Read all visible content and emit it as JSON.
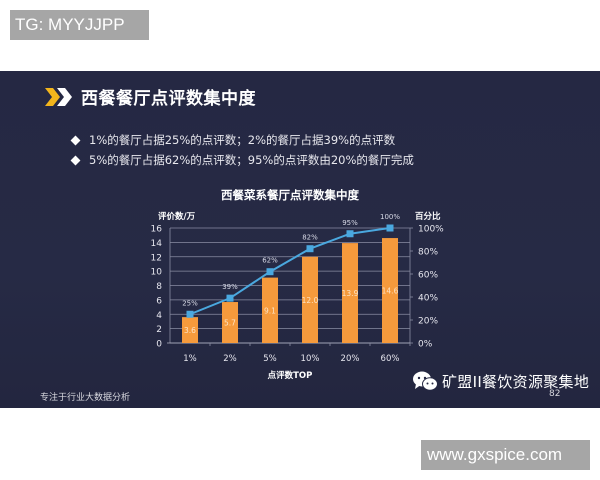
{
  "watermark_top": "TG: MYYJJPP",
  "watermark_bottom": "www.gxspice.com",
  "slide": {
    "title": "西餐餐厅点评数集中度",
    "bullets": [
      "1%的餐厅占据25%的点评数；2%的餐厅占据39%的点评数",
      "5%的餐厅占据62%的点评数；95%的点评数由20%的餐厅完成"
    ],
    "footer_left": "专注于行业大数据分析",
    "page_number": "82",
    "wechat_account": "矿盟II餐饮资源聚集地"
  },
  "colors": {
    "background": "#252843",
    "bar": "#f59a3c",
    "line": "#4aa8df",
    "chevron_yellow": "#f2b51c",
    "gridline": "#8a8da3"
  },
  "chart_data": {
    "type": "bar",
    "title": "西餐菜系餐厅点评数集中度",
    "xlabel": "点评数TOP",
    "ylabel": "评价数/万",
    "y2label": "百分比",
    "categories": [
      "1%",
      "2%",
      "5%",
      "10%",
      "20%",
      "60%"
    ],
    "series": [
      {
        "name": "评价数/万",
        "type": "bar",
        "axis": "left",
        "values": [
          3.6,
          5.7,
          9.1,
          12.0,
          13.9,
          14.6
        ]
      },
      {
        "name": "百分比",
        "type": "line",
        "axis": "right",
        "values": [
          25,
          39,
          62,
          82,
          95,
          100
        ],
        "labels": [
          "25%",
          "39%",
          "62%",
          "82%",
          "95%",
          "100%"
        ]
      }
    ],
    "ylim": [
      0,
      16
    ],
    "yticks": [
      "0",
      "2",
      "4",
      "6",
      "8",
      "10",
      "12",
      "14",
      "16"
    ],
    "y2lim": [
      0,
      100
    ],
    "y2ticks": [
      "0%",
      "20%",
      "40%",
      "60%",
      "80%",
      "100%"
    ],
    "grid": true,
    "legend": "none"
  }
}
